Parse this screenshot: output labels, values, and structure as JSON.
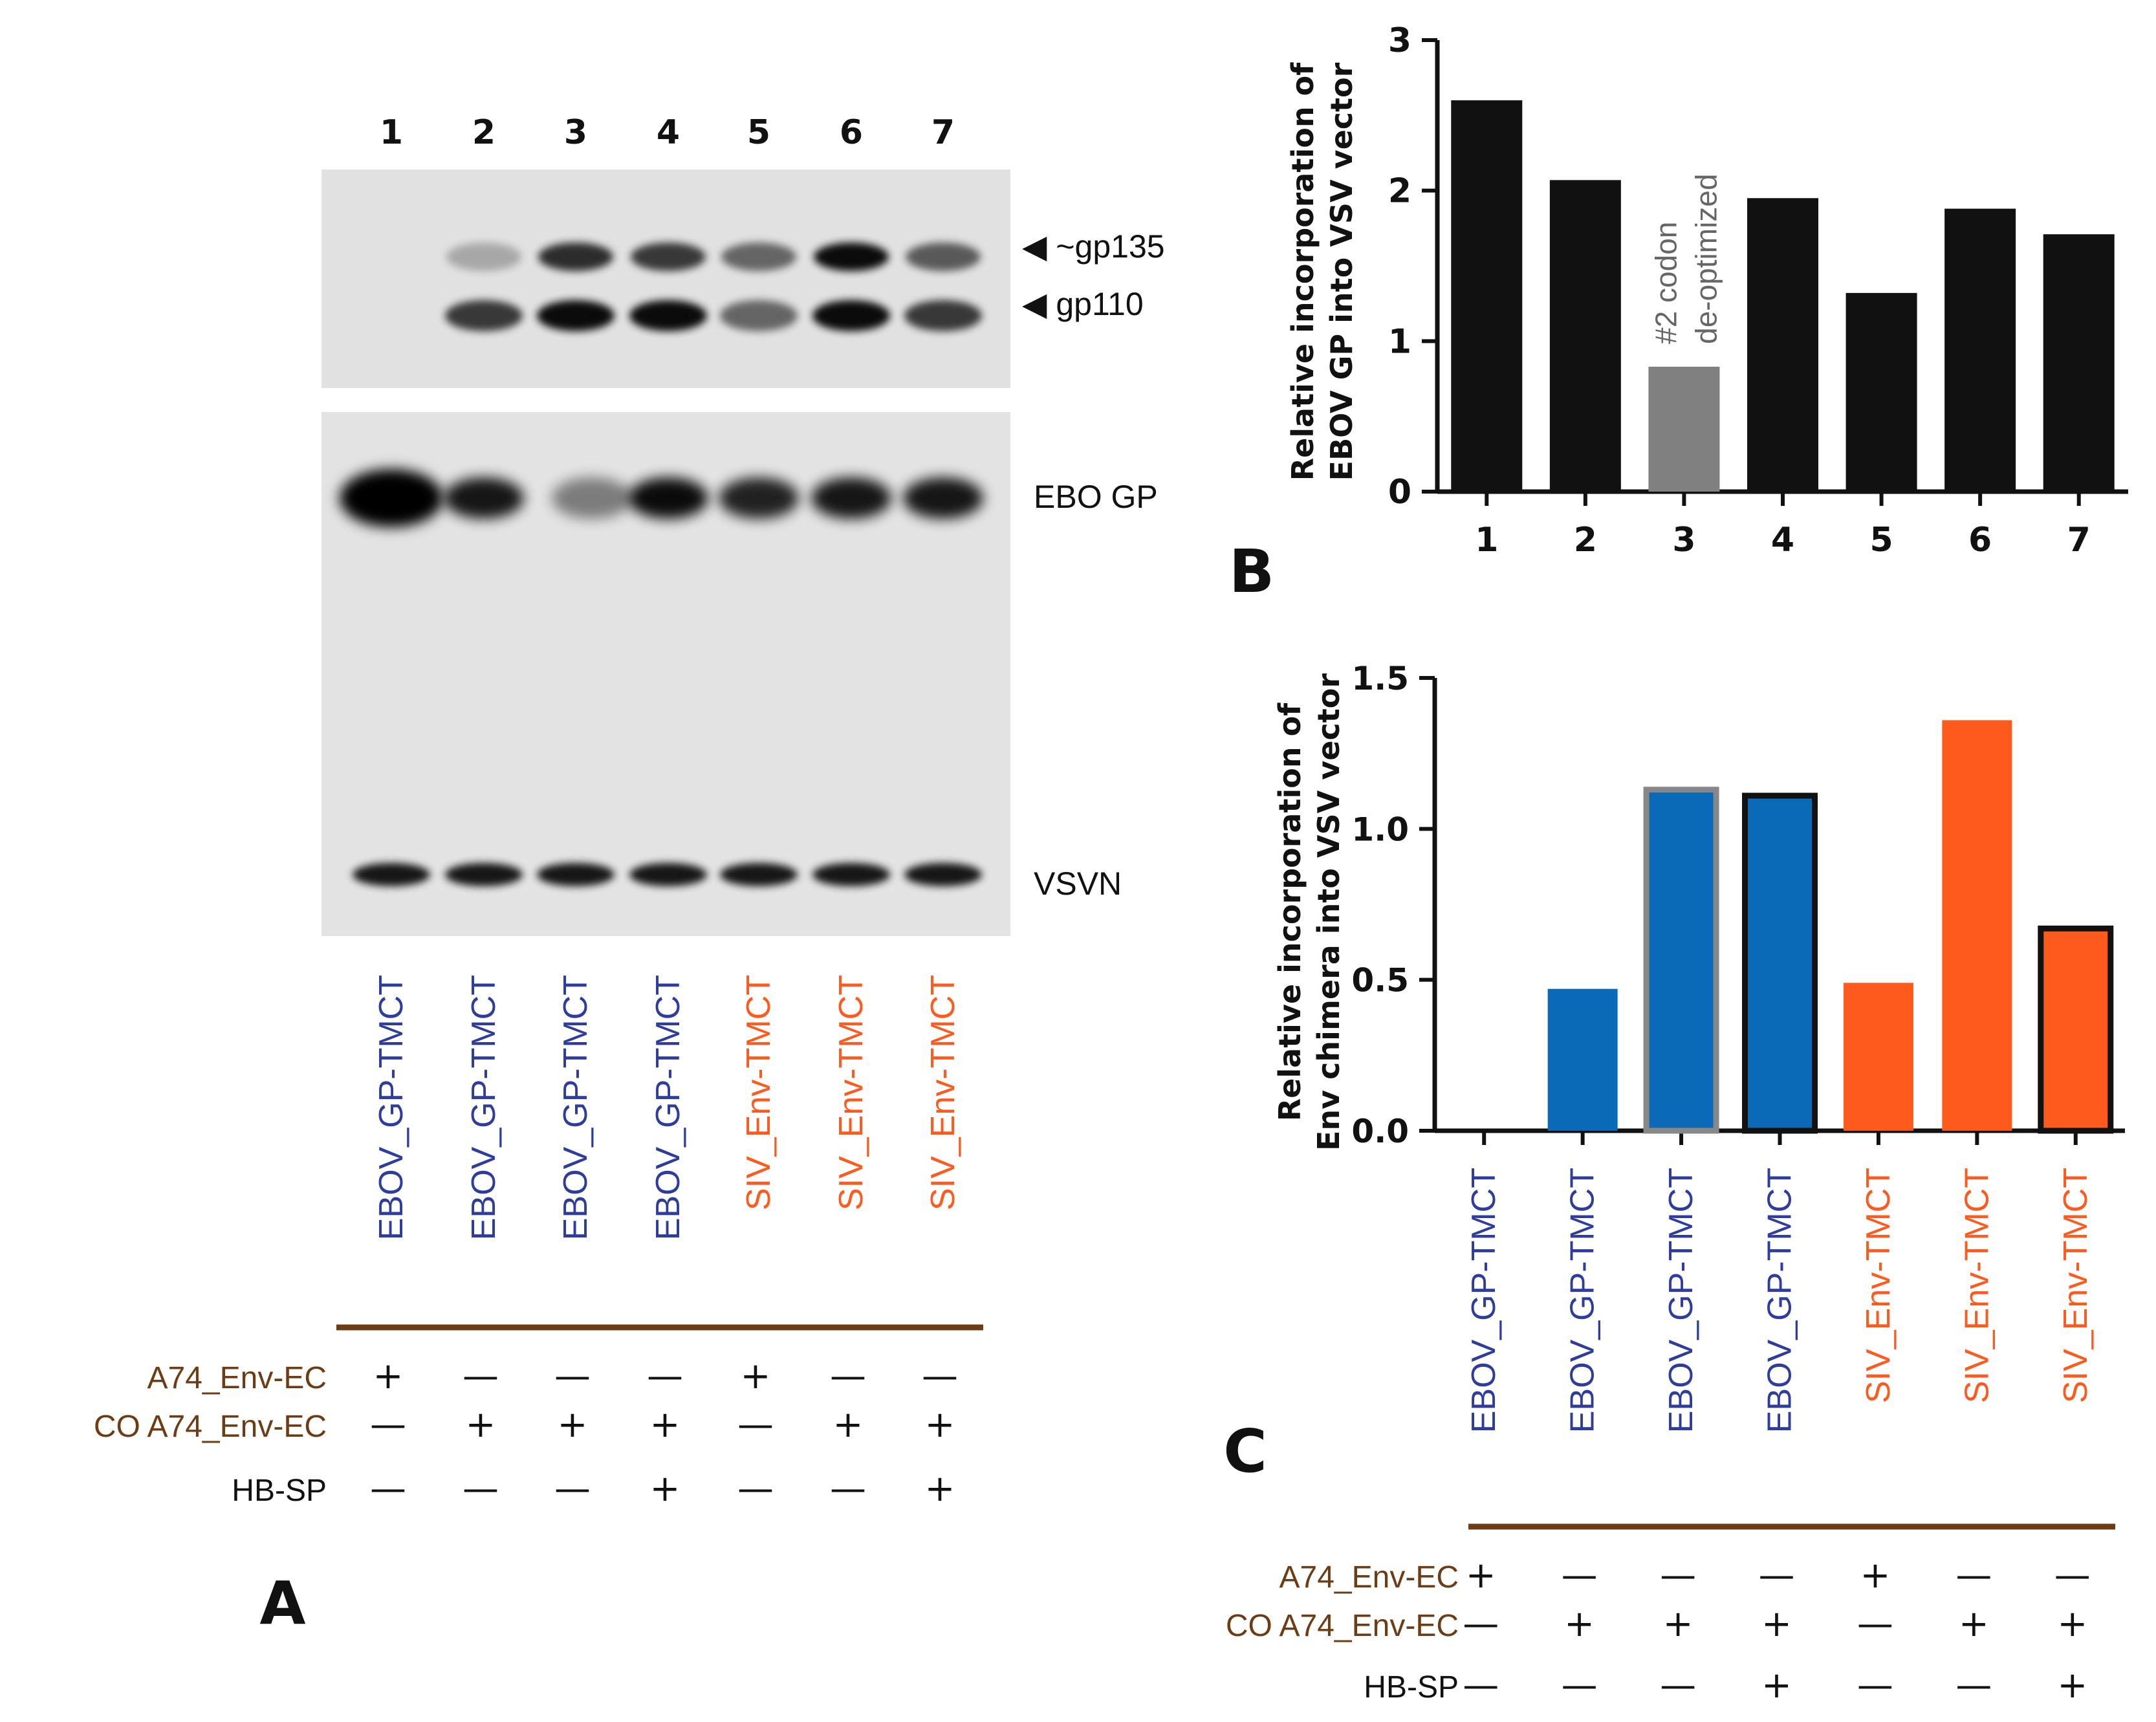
{
  "colors": {
    "ebov_blue": "#2e3c9e",
    "siv_orange": "#ff5a1e",
    "brown": "#6e3c14",
    "bar_black": "#111111",
    "bar_grey": "#808080",
    "bar_blue": "#0a6ab8",
    "bar_orange": "#ff5a1e"
  },
  "panel_a": {
    "panel_letter": "A",
    "lane_numbers": [
      "1",
      "2",
      "3",
      "4",
      "5",
      "6",
      "7"
    ],
    "band_labels": {
      "gp135": "◀ ~gp135",
      "gp110": "◀ gp110",
      "ebo_gp": "EBO GP",
      "vsvn": "VSVN"
    },
    "lanes": [
      {
        "name": "EBOV_GP-TMCT",
        "group": "ebov",
        "a74": "+",
        "co_a74": "—",
        "hb_sp": "—"
      },
      {
        "name": "EBOV_GP-TMCT",
        "group": "ebov",
        "a74": "—",
        "co_a74": "+",
        "hb_sp": "—"
      },
      {
        "name": "EBOV_GP-TMCT",
        "group": "ebov",
        "a74": "—",
        "co_a74": "+",
        "hb_sp": "—"
      },
      {
        "name": "EBOV_GP-TMCT",
        "group": "ebov",
        "a74": "—",
        "co_a74": "+",
        "hb_sp": "+"
      },
      {
        "name": "SIV_Env-TMCT",
        "group": "siv",
        "a74": "+",
        "co_a74": "—",
        "hb_sp": "—"
      },
      {
        "name": "SIV_Env-TMCT",
        "group": "siv",
        "a74": "—",
        "co_a74": "+",
        "hb_sp": "—"
      },
      {
        "name": "SIV_Env-TMCT",
        "group": "siv",
        "a74": "—",
        "co_a74": "+",
        "hb_sp": "+"
      }
    ],
    "row_labels": {
      "a74": "A74_Env-EC",
      "co_a74": "CO A74_Env-EC",
      "hb_sp": "HB-SP"
    }
  },
  "panel_c_table": {
    "row_labels": {
      "a74": "A74_Env-EC",
      "co_a74": "CO A74_Env-EC",
      "hb_sp": "HB-SP"
    }
  },
  "chart_data": [
    {
      "panel": "B",
      "type": "bar",
      "categories": [
        "1",
        "2",
        "3",
        "4",
        "5",
        "6",
        "7"
      ],
      "values": [
        2.6,
        2.07,
        0.83,
        1.95,
        1.32,
        1.88,
        1.71
      ],
      "bar_colors": [
        "#111111",
        "#111111",
        "#808080",
        "#111111",
        "#111111",
        "#111111",
        "#111111"
      ],
      "ylabel_line1": "Relative incorporation of",
      "ylabel_line2": "EBOV GP into VSV vector",
      "yticks": [
        "0",
        "1",
        "2",
        "3"
      ],
      "ylim": [
        0,
        3
      ],
      "annotation_line1": "#2 codon",
      "annotation_line2": "de-optimized",
      "annotation_bar": 3
    },
    {
      "panel": "C",
      "type": "bar",
      "categories": [
        "EBOV_GP-TMCT",
        "EBOV_GP-TMCT",
        "EBOV_GP-TMCT",
        "EBOV_GP-TMCT",
        "SIV_Env-TMCT",
        "SIV_Env-TMCT",
        "SIV_Env-TMCT"
      ],
      "category_colors": [
        "#2e3c9e",
        "#2e3c9e",
        "#2e3c9e",
        "#2e3c9e",
        "#ff5a1e",
        "#ff5a1e",
        "#ff5a1e"
      ],
      "values": [
        0.0,
        0.47,
        1.13,
        1.11,
        0.49,
        1.36,
        0.67
      ],
      "bar_colors": [
        "#0a6ab8",
        "#0a6ab8",
        "#0a6ab8",
        "#0a6ab8",
        "#ff5a1e",
        "#ff5a1e",
        "#ff5a1e"
      ],
      "bar_outlines": [
        "none",
        "none",
        "#888888",
        "#111111",
        "none",
        "none",
        "#111111"
      ],
      "ylabel_line1": "Relative incorporation of",
      "ylabel_line2": "Env chimera into VSV vector",
      "yticks": [
        "0.0",
        "0.5",
        "1.0",
        "1.5"
      ],
      "ylim": [
        0,
        1.5
      ],
      "a74": [
        "+",
        "—",
        "—",
        "—",
        "+",
        "—",
        "—"
      ],
      "co_a74": [
        "—",
        "+",
        "+",
        "+",
        "—",
        "+",
        "+"
      ],
      "hb_sp": [
        "—",
        "—",
        "—",
        "+",
        "—",
        "—",
        "+"
      ]
    }
  ],
  "panel_b_letter": "B",
  "panel_c_letter": "C"
}
